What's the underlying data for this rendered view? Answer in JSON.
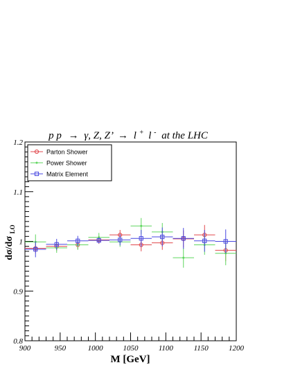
{
  "chart_data": {
    "type": "scatter",
    "title_parts": {
      "prefix": "p p",
      "arrow1": "→",
      "bosons": "γ, Z, Z’",
      "arrow2": "→",
      "lepton": "l",
      "plus": "+",
      "antilepton": "l",
      "minus": "-",
      "suffix": "at the LHC"
    },
    "xlabel": "M [GeV]",
    "ylabel_main": "dσ/dσ",
    "ylabel_sub": "LO",
    "xlim": [
      900,
      1200
    ],
    "ylim": [
      0.8,
      1.2
    ],
    "x_ticks": [
      900,
      950,
      1000,
      1050,
      1100,
      1150,
      1200
    ],
    "x_tick_labels": [
      "900",
      "950",
      "1000",
      "1050",
      "1100",
      "1150",
      "1200"
    ],
    "y_ticks": [
      0.8,
      0.9,
      1.0,
      1.1,
      1.2
    ],
    "y_tick_labels": [
      "0.8",
      "0.9",
      "1",
      "1.1",
      "1.2"
    ],
    "legend_position": "top-left",
    "series": [
      {
        "name": "Parton Shower",
        "color": "#e0474c",
        "marker": "circle",
        "points": [
          {
            "x": 915,
            "y": 0.986,
            "xerr": 15,
            "yerr": 0.01
          },
          {
            "x": 945,
            "y": 0.99,
            "xerr": 15,
            "yerr": 0.009
          },
          {
            "x": 975,
            "y": 0.993,
            "xerr": 15,
            "yerr": 0.009
          },
          {
            "x": 1005,
            "y": 1.003,
            "xerr": 15,
            "yerr": 0.008
          },
          {
            "x": 1035,
            "y": 1.013,
            "xerr": 15,
            "yerr": 0.01
          },
          {
            "x": 1065,
            "y": 0.993,
            "xerr": 15,
            "yerr": 0.013
          },
          {
            "x": 1095,
            "y": 0.997,
            "xerr": 15,
            "yerr": 0.014
          },
          {
            "x": 1125,
            "y": 1.005,
            "xerr": 15,
            "yerr": 0.017
          },
          {
            "x": 1155,
            "y": 1.013,
            "xerr": 15,
            "yerr": 0.02
          },
          {
            "x": 1185,
            "y": 0.982,
            "xerr": 15,
            "yerr": 0.022
          }
        ]
      },
      {
        "name": "Power Shower",
        "color": "#5ed65e",
        "marker": "point",
        "points": [
          {
            "x": 915,
            "y": 0.999,
            "xerr": 15,
            "yerr": 0.015
          },
          {
            "x": 945,
            "y": 0.987,
            "xerr": 15,
            "yerr": 0.01
          },
          {
            "x": 975,
            "y": 0.993,
            "xerr": 15,
            "yerr": 0.01
          },
          {
            "x": 1005,
            "y": 1.008,
            "xerr": 15,
            "yerr": 0.009
          },
          {
            "x": 1035,
            "y": 0.999,
            "xerr": 15,
            "yerr": 0.01
          },
          {
            "x": 1065,
            "y": 1.031,
            "xerr": 15,
            "yerr": 0.016
          },
          {
            "x": 1095,
            "y": 1.019,
            "xerr": 15,
            "yerr": 0.018
          },
          {
            "x": 1125,
            "y": 0.967,
            "xerr": 15,
            "yerr": 0.02
          },
          {
            "x": 1155,
            "y": 0.993,
            "xerr": 15,
            "yerr": 0.02
          },
          {
            "x": 1185,
            "y": 0.976,
            "xerr": 15,
            "yerr": 0.024
          }
        ]
      },
      {
        "name": "Matrix Element",
        "color": "#4747e0",
        "marker": "square",
        "points": [
          {
            "x": 915,
            "y": 0.984,
            "xerr": 15,
            "yerr": 0.016
          },
          {
            "x": 945,
            "y": 0.994,
            "xerr": 15,
            "yerr": 0.011
          },
          {
            "x": 975,
            "y": 1.001,
            "xerr": 15,
            "yerr": 0.01
          },
          {
            "x": 1005,
            "y": 1.002,
            "xerr": 15,
            "yerr": 0.006
          },
          {
            "x": 1035,
            "y": 1.003,
            "xerr": 15,
            "yerr": 0.011
          },
          {
            "x": 1065,
            "y": 1.006,
            "xerr": 15,
            "yerr": 0.017
          },
          {
            "x": 1095,
            "y": 1.009,
            "xerr": 15,
            "yerr": 0.019
          },
          {
            "x": 1125,
            "y": 1.006,
            "xerr": 15,
            "yerr": 0.021
          },
          {
            "x": 1155,
            "y": 1.001,
            "xerr": 15,
            "yerr": 0.022
          },
          {
            "x": 1185,
            "y": 1.0,
            "xerr": 15,
            "yerr": 0.024
          }
        ]
      }
    ]
  }
}
